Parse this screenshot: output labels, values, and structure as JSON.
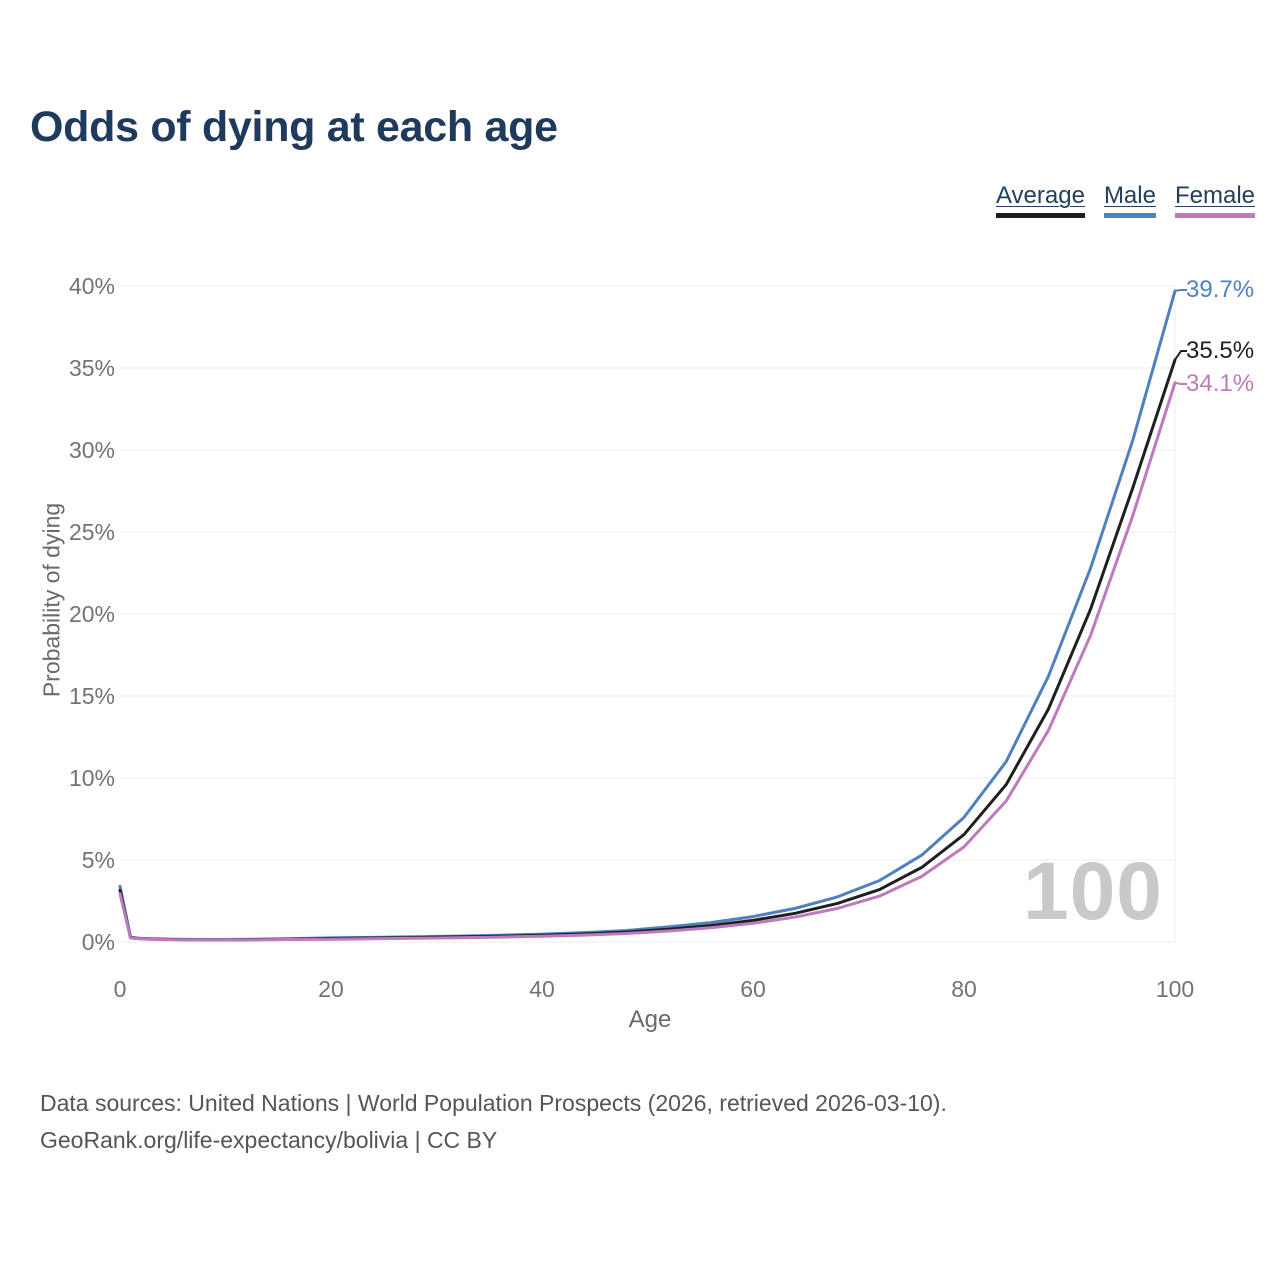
{
  "title": "Odds of dying at each age",
  "legend": {
    "items": [
      {
        "label": "Average",
        "color": "#1f1f1f"
      },
      {
        "label": "Male",
        "color": "#5080c0"
      },
      {
        "label": "Female",
        "color": "#bd7abc"
      }
    ]
  },
  "chart_data": {
    "type": "line",
    "title": "Odds of dying at each age",
    "xlabel": "Age",
    "ylabel": "Probability of dying",
    "xlim": [
      0,
      100
    ],
    "ylim": [
      0,
      40
    ],
    "grid": "horizontal-light",
    "legend_position": "top-right",
    "frame_label": "100",
    "xticks": {
      "values": [
        0,
        20,
        40,
        60,
        80,
        100
      ],
      "labels": [
        "0",
        "20",
        "40",
        "60",
        "80",
        "100"
      ]
    },
    "yticks": {
      "values": [
        0,
        5,
        10,
        15,
        20,
        25,
        30,
        35,
        40
      ],
      "labels_top_to_bottom": [
        "40%",
        "35%",
        "30%",
        "25%",
        "20%",
        "15%",
        "10%",
        "5%",
        "0%"
      ]
    },
    "x_ages": [
      0,
      1,
      2,
      3,
      5,
      8,
      10,
      13,
      16,
      20,
      24,
      28,
      32,
      36,
      40,
      44,
      48,
      52,
      56,
      60,
      64,
      68,
      72,
      76,
      80,
      84,
      88,
      92,
      96,
      100
    ],
    "series": [
      {
        "name": "Male",
        "color": "#5080c0",
        "end_label": "39.7%",
        "end_value": 39.7,
        "values": [
          3.4,
          0.28,
          0.22,
          0.19,
          0.17,
          0.15,
          0.15,
          0.17,
          0.2,
          0.25,
          0.28,
          0.32,
          0.36,
          0.41,
          0.48,
          0.57,
          0.7,
          0.92,
          1.18,
          1.55,
          2.05,
          2.75,
          3.75,
          5.3,
          7.6,
          11.0,
          16.2,
          22.8,
          30.6,
          39.7
        ]
      },
      {
        "name": "Average",
        "color": "#1f1f1f",
        "end_label": "35.5%",
        "end_value": 35.5,
        "values": [
          3.15,
          0.26,
          0.2,
          0.18,
          0.15,
          0.13,
          0.13,
          0.15,
          0.17,
          0.21,
          0.24,
          0.27,
          0.31,
          0.35,
          0.41,
          0.49,
          0.6,
          0.78,
          1.0,
          1.32,
          1.75,
          2.35,
          3.2,
          4.55,
          6.55,
          9.6,
          14.2,
          20.3,
          27.7,
          35.5
        ]
      },
      {
        "name": "Female",
        "color": "#bd7abc",
        "end_label": "34.1%",
        "end_value": 34.1,
        "values": [
          2.95,
          0.24,
          0.19,
          0.16,
          0.14,
          0.12,
          0.12,
          0.13,
          0.15,
          0.17,
          0.2,
          0.23,
          0.26,
          0.3,
          0.35,
          0.42,
          0.52,
          0.67,
          0.87,
          1.14,
          1.52,
          2.05,
          2.8,
          4.0,
          5.8,
          8.6,
          12.9,
          18.7,
          26.0,
          34.1
        ]
      }
    ]
  },
  "footer": {
    "line1": "Data sources: United Nations | World Population Prospects (2026, retrieved 2026-03-10).",
    "line2": "GeoRank.org/life-expectancy/bolivia | CC BY"
  }
}
